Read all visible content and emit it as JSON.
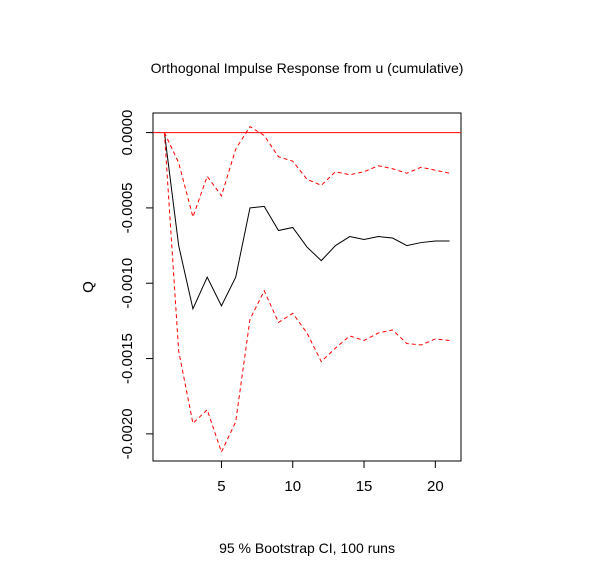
{
  "chart_data": {
    "type": "line",
    "title": "Orthogonal Impulse Response from u (cumulative)",
    "xlabel": "95 % Bootstrap CI,  100 runs",
    "ylabel": "Q",
    "xlim": [
      1,
      21
    ],
    "ylim": [
      -0.00218,
      0.00013
    ],
    "x_ticks": [
      5,
      10,
      15,
      20
    ],
    "x_tick_labels": [
      "5",
      "10",
      "15",
      "20"
    ],
    "y_ticks": [
      0,
      -0.0005,
      -0.001,
      -0.0015,
      -0.002
    ],
    "y_tick_labels": [
      "0.0000",
      "-0.0005",
      "-0.0010",
      "-0.0015",
      "-0.0020"
    ],
    "grid": false,
    "legend": "none",
    "x": [
      1,
      2,
      3,
      4,
      5,
      6,
      7,
      8,
      9,
      10,
      11,
      12,
      13,
      14,
      15,
      16,
      17,
      18,
      19,
      20,
      21
    ],
    "series": [
      {
        "role": "response",
        "color": "#000000",
        "style": "solid",
        "values": [
          0,
          -0.00075,
          -0.00117,
          -0.00096,
          -0.00115,
          -0.00096,
          -0.0005,
          -0.00049,
          -0.00065,
          -0.00063,
          -0.00076,
          -0.00085,
          -0.00075,
          -0.00069,
          -0.00071,
          -0.00069,
          -0.0007,
          -0.00075,
          -0.00073,
          -0.00072,
          -0.00072
        ]
      },
      {
        "role": "upper-ci",
        "color": "#ff0000",
        "style": "dashed",
        "values": [
          0,
          -0.0002,
          -0.00056,
          -0.00029,
          -0.00042,
          -0.00011,
          4e-05,
          -2e-05,
          -0.00016,
          -0.00019,
          -0.00031,
          -0.00035,
          -0.00026,
          -0.00028,
          -0.00026,
          -0.00022,
          -0.00024,
          -0.00027,
          -0.00023,
          -0.00025,
          -0.00027
        ]
      },
      {
        "role": "lower-ci",
        "color": "#ff0000",
        "style": "dashed",
        "values": [
          0,
          -0.00145,
          -0.00193,
          -0.00184,
          -0.00212,
          -0.00192,
          -0.00124,
          -0.00105,
          -0.00126,
          -0.0012,
          -0.00133,
          -0.00152,
          -0.00143,
          -0.00135,
          -0.00138,
          -0.00133,
          -0.00131,
          -0.0014,
          -0.00141,
          -0.00137,
          -0.00138
        ]
      }
    ],
    "reference_line": {
      "y": 0,
      "color": "#ff0000",
      "style": "solid"
    }
  }
}
